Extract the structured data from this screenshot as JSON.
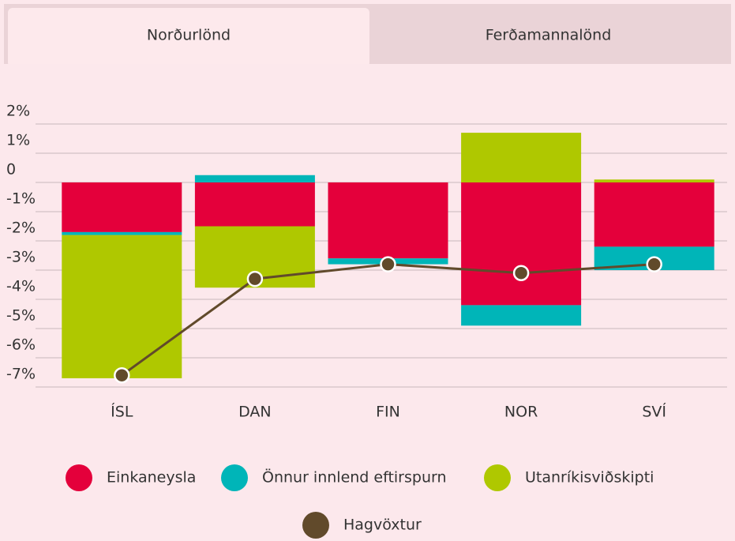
{
  "tabs": [
    "Norðurlönd",
    "Ferðamannalönd"
  ],
  "active_tab": 0,
  "chart_data": {
    "type": "bar",
    "stacked": true,
    "categories": [
      "ÍSL",
      "DAN",
      "FIN",
      "NOR",
      "SVÍ"
    ],
    "series": [
      {
        "name": "Einkaneysla",
        "color": "#e4003b",
        "type": "bar",
        "values": [
          -1.7,
          -1.5,
          -2.6,
          -4.2,
          -2.2
        ]
      },
      {
        "name": "Önnur innlend eftirspurn",
        "color": "#00b5b8",
        "type": "bar",
        "values": [
          -0.1,
          0.25,
          -0.2,
          -0.7,
          -0.8
        ]
      },
      {
        "name": "Utanríkisviðskipti",
        "color": "#afc800",
        "type": "bar",
        "values": [
          -4.9,
          -2.1,
          0,
          1.7,
          0.1
        ]
      },
      {
        "name": "Hagvöxtur",
        "color": "#614a2b",
        "type": "line",
        "values": [
          -6.6,
          -3.3,
          -2.8,
          -3.1,
          -2.8
        ]
      }
    ],
    "ylim": [
      -7,
      2
    ],
    "yticks": [
      {
        "value": 2,
        "label": "2%"
      },
      {
        "value": 1,
        "label": "1%"
      },
      0,
      {
        "value": -1,
        "label": "-1%"
      },
      {
        "value": -2,
        "label": "-2%"
      },
      {
        "value": -3,
        "label": "-3%"
      },
      {
        "value": -4,
        "label": "-4%"
      },
      {
        "value": -5,
        "label": "-5%"
      },
      {
        "value": -6,
        "label": "-6%"
      },
      {
        "value": -7,
        "label": "-7%"
      }
    ],
    "grid": true
  }
}
